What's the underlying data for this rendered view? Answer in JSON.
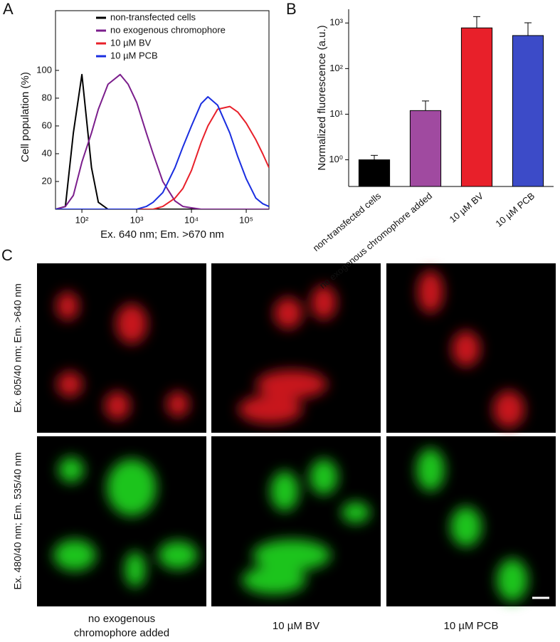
{
  "chart_data": [
    {
      "type": "line",
      "panel": "A",
      "xlabel": "Ex. 640 nm; Em. >670 nm",
      "ylabel": "Cell population  (%)",
      "xscale": "log",
      "xlim": [
        33,
        260000
      ],
      "ylim": [
        0,
        143
      ],
      "xticks": [
        {
          "value": 100,
          "label": "10²"
        },
        {
          "value": 1000,
          "label": "10³"
        },
        {
          "value": 10000,
          "label": "10⁴"
        },
        {
          "value": 100000,
          "label": "10⁵"
        }
      ],
      "yticks": [
        20,
        40,
        60,
        80,
        100
      ],
      "legend": "top",
      "x": [
        33,
        50,
        70,
        100,
        150,
        200,
        300,
        500,
        700,
        1000,
        1500,
        2000,
        3000,
        5000,
        7000,
        10000,
        15000,
        20000,
        30000,
        50000,
        70000,
        100000,
        150000,
        200000,
        260000
      ],
      "series": [
        {
          "name": "non-transfected cells",
          "color": "#000000",
          "values": [
            0,
            2,
            55,
            97,
            30,
            5,
            0,
            0,
            0,
            0,
            0,
            0,
            0,
            0,
            0,
            0,
            0,
            0,
            0,
            0,
            0,
            0,
            0,
            0,
            0
          ]
        },
        {
          "name": "no exogenous chromophore",
          "color": "#7b1e8c",
          "values": [
            0,
            2,
            10,
            34,
            55,
            72,
            90,
            97,
            90,
            77,
            55,
            40,
            20,
            6,
            2,
            1,
            0,
            0,
            0,
            0,
            0,
            0,
            0,
            0,
            0
          ]
        },
        {
          "name": "10 µM BV",
          "color": "#e8202a",
          "values": [
            0,
            0,
            0,
            0,
            0,
            0,
            0,
            0,
            0,
            0,
            0,
            0,
            2,
            8,
            15,
            28,
            48,
            60,
            72,
            74,
            70,
            62,
            50,
            40,
            30
          ]
        },
        {
          "name": "10 µM PCB",
          "color": "#1a2ee0",
          "values": [
            0,
            0,
            0,
            0,
            0,
            0,
            0,
            0,
            0,
            0,
            2,
            5,
            12,
            30,
            45,
            60,
            76,
            81,
            75,
            55,
            38,
            22,
            8,
            4,
            2
          ]
        }
      ]
    },
    {
      "type": "bar",
      "panel": "B",
      "ylabel": "Normalized fluorescence (a.u.)",
      "yscale": "log",
      "ylim": [
        0.26,
        2000
      ],
      "yticks": [
        {
          "value": 1,
          "label": "10⁰"
        },
        {
          "value": 10,
          "label": "10¹"
        },
        {
          "value": 100,
          "label": "10²"
        },
        {
          "value": 1000,
          "label": "10³"
        }
      ],
      "categories": [
        "non-transfected cells",
        "no exogenous chromophore added",
        "10 µM BV",
        "10 µM PCB"
      ],
      "values": [
        1,
        12,
        780,
        530
      ],
      "errors": [
        0.25,
        7.5,
        600,
        480
      ],
      "colors": [
        "#000000",
        "#a04aa0",
        "#e8202a",
        "#3c4bc8"
      ]
    }
  ],
  "panel_c": {
    "label": "C",
    "rows": [
      "Ex. 605/40 nm; Em. >640 nm",
      "Ex. 480/40 nm; Em. 535/40 nm"
    ],
    "columns": [
      [
        "no exogenous",
        "chromophore added"
      ],
      [
        "10 µM BV"
      ],
      [
        "10 µM PCB"
      ]
    ]
  }
}
